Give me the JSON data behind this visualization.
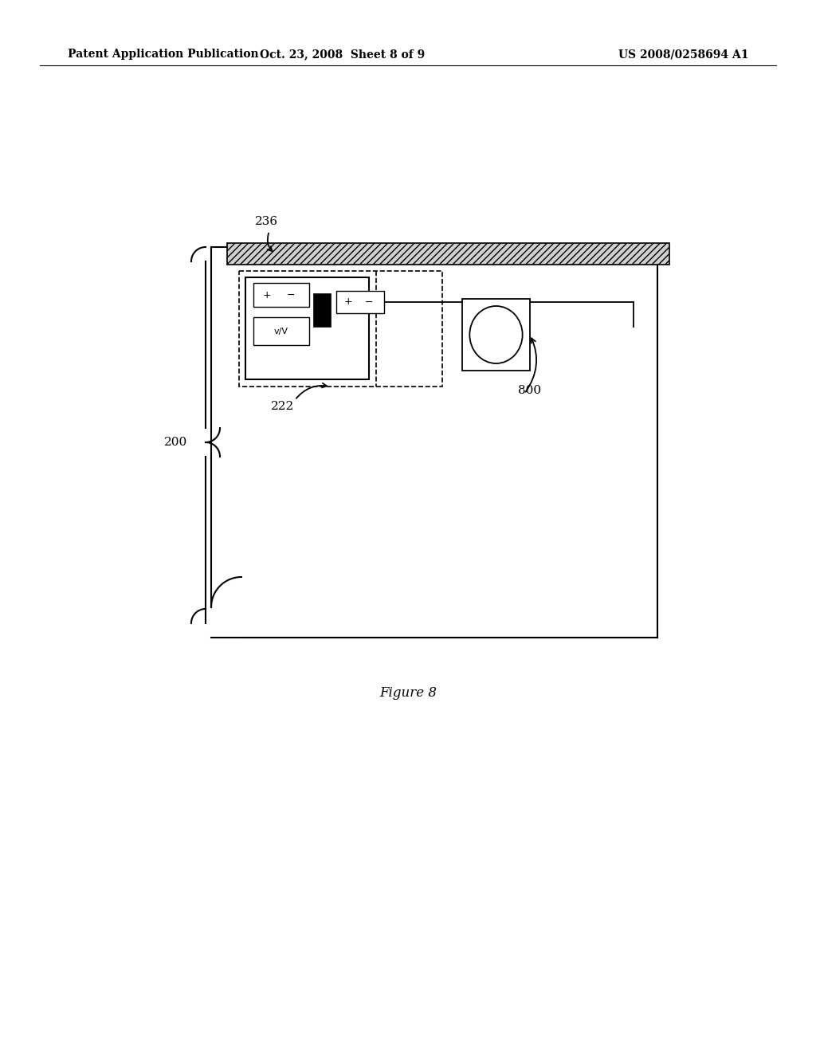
{
  "bg_color": "#ffffff",
  "header_text_left": "Patent Application Publication",
  "header_text_mid": "Oct. 23, 2008  Sheet 8 of 9",
  "header_text_right": "US 2008/0258694 A1",
  "figure_caption": "Figure 8",
  "label_200": "200",
  "label_222": "222",
  "label_236": "236",
  "label_800": "800"
}
